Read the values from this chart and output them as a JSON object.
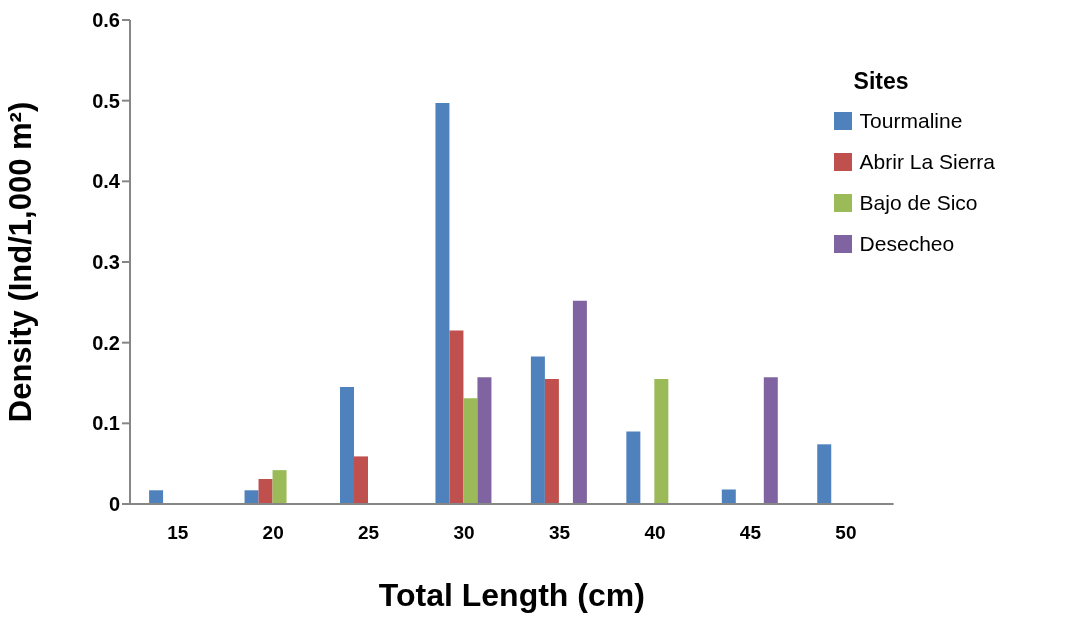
{
  "chart_data": {
    "type": "bar",
    "xlabel": "Total Length (cm)",
    "ylabel": "Density (Ind/1,000 m²)",
    "legend_title": "Sites",
    "categories": [
      "15",
      "20",
      "25",
      "30",
      "35",
      "40",
      "45",
      "50"
    ],
    "series": [
      {
        "name": "Tourmaline",
        "color": "#4f81bd",
        "values": [
          0.017,
          0.017,
          0.145,
          0.497,
          0.183,
          0.09,
          0.018,
          0.074
        ]
      },
      {
        "name": "Abrir La Sierra",
        "color": "#c0504d",
        "values": [
          null,
          0.031,
          0.059,
          0.215,
          0.155,
          null,
          null,
          null
        ]
      },
      {
        "name": "Bajo de Sico",
        "color": "#9bbb59",
        "values": [
          null,
          0.042,
          null,
          0.131,
          null,
          0.155,
          null,
          null
        ]
      },
      {
        "name": "Desecheo",
        "color": "#8064a2",
        "values": [
          null,
          null,
          null,
          0.157,
          0.252,
          null,
          0.157,
          null
        ]
      }
    ],
    "ylim": [
      0,
      0.6
    ],
    "yticks": [
      0,
      0.1,
      0.2,
      0.3,
      0.4,
      0.5,
      0.6
    ],
    "grid": false,
    "legend": "top right"
  }
}
